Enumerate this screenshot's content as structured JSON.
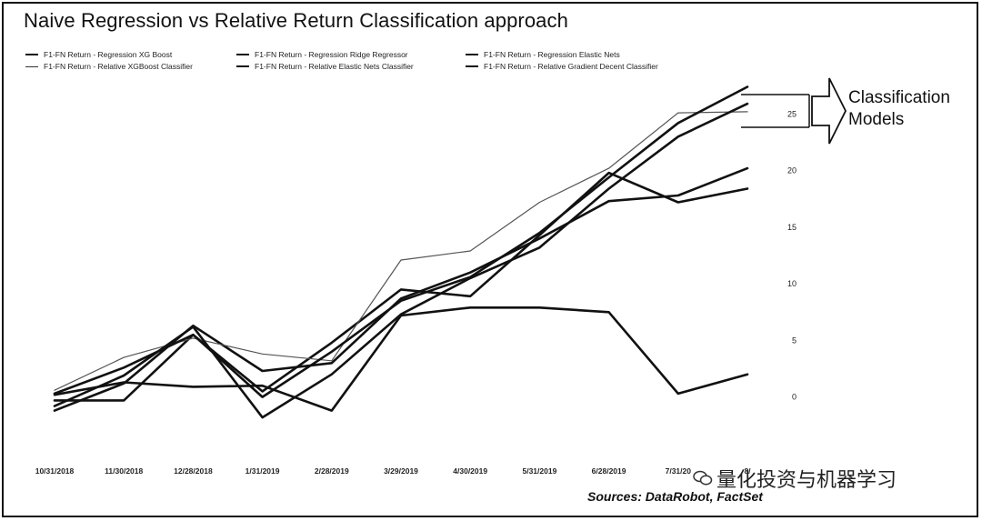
{
  "title": "Naive Regression vs Relative Return Classification approach",
  "legend": [
    {
      "label": "F1-FN Return - Regression XG Boost",
      "style": "thick"
    },
    {
      "label": "F1-FN Return - Regression Ridge Regressor",
      "style": "thick"
    },
    {
      "label": "F1-FN Return - Regression Elastic Nets",
      "style": "thick"
    },
    {
      "label": "F1-FN Return - Relative XGBoost Classifier",
      "style": "thin"
    },
    {
      "label": "F1-FN Return - Relative Elastic Nets Classifier",
      "style": "thick"
    },
    {
      "label": "F1-FN Return - Relative Gradient Decent Classifier",
      "style": "thick"
    }
  ],
  "annotation": {
    "line1": "Classification",
    "line2": "Models"
  },
  "source": "Sources: DataRobot, FactSet",
  "watermark": "量化投资与机器学习",
  "chart_data": {
    "type": "line",
    "title": "Naive Regression vs Relative Return Classification approach",
    "xlabel": "",
    "ylabel": "",
    "x": [
      "10/31/2018",
      "11/30/2018",
      "12/28/2018",
      "1/31/2019",
      "2/28/2019",
      "3/29/2019",
      "4/30/2019",
      "5/31/2019",
      "6/28/2019",
      "7/31/2019",
      "8/30/2019"
    ],
    "x_tick_labels": [
      "10/31/2018",
      "11/30/2018",
      "12/28/2018",
      "1/31/2019",
      "2/28/2019",
      "3/29/2019",
      "4/30/2019",
      "5/31/2019",
      "6/28/2019",
      "7/31/20",
      "8/"
    ],
    "y_ticks": [
      0,
      5,
      10,
      15,
      20,
      25
    ],
    "ylim": [
      -3,
      28
    ],
    "y_axis_position": "right",
    "grid": false,
    "legend_position": "top",
    "series": [
      {
        "name": "F1-FN Return - Regression XG Boost",
        "values": [
          0.2,
          1.3,
          0.9,
          1.0,
          -1.2,
          7.2,
          7.9,
          7.9,
          7.5,
          0.3,
          2.0
        ],
        "style": "thick"
      },
      {
        "name": "F1-FN Return - Regression Ridge Regressor",
        "values": [
          -1.2,
          1.2,
          6.3,
          2.3,
          3.0,
          8.7,
          11.0,
          14.0,
          17.3,
          17.8,
          20.2
        ],
        "style": "thick"
      },
      {
        "name": "F1-FN Return - Regression Elastic Nets",
        "values": [
          -0.3,
          -0.3,
          5.5,
          0.5,
          4.8,
          9.5,
          8.9,
          14.3,
          19.8,
          17.2,
          18.4
        ],
        "style": "thick"
      },
      {
        "name": "F1-FN Return - Relative XGBoost Classifier",
        "values": [
          0.6,
          3.5,
          5.2,
          3.8,
          3.2,
          12.1,
          12.9,
          17.2,
          20.2,
          25.1,
          25.2
        ],
        "style": "thin"
      },
      {
        "name": "F1-FN Return - Relative Elastic Nets Classifier",
        "values": [
          -0.8,
          1.9,
          6.2,
          -1.8,
          2.0,
          7.3,
          10.5,
          13.2,
          18.4,
          23.0,
          25.9
        ],
        "style": "thick"
      },
      {
        "name": "F1-FN Return - Relative Gradient Decent Classifier",
        "values": [
          0.3,
          2.6,
          5.5,
          0.0,
          4.0,
          8.5,
          10.6,
          14.5,
          19.4,
          24.2,
          27.4
        ],
        "style": "thick"
      }
    ]
  }
}
